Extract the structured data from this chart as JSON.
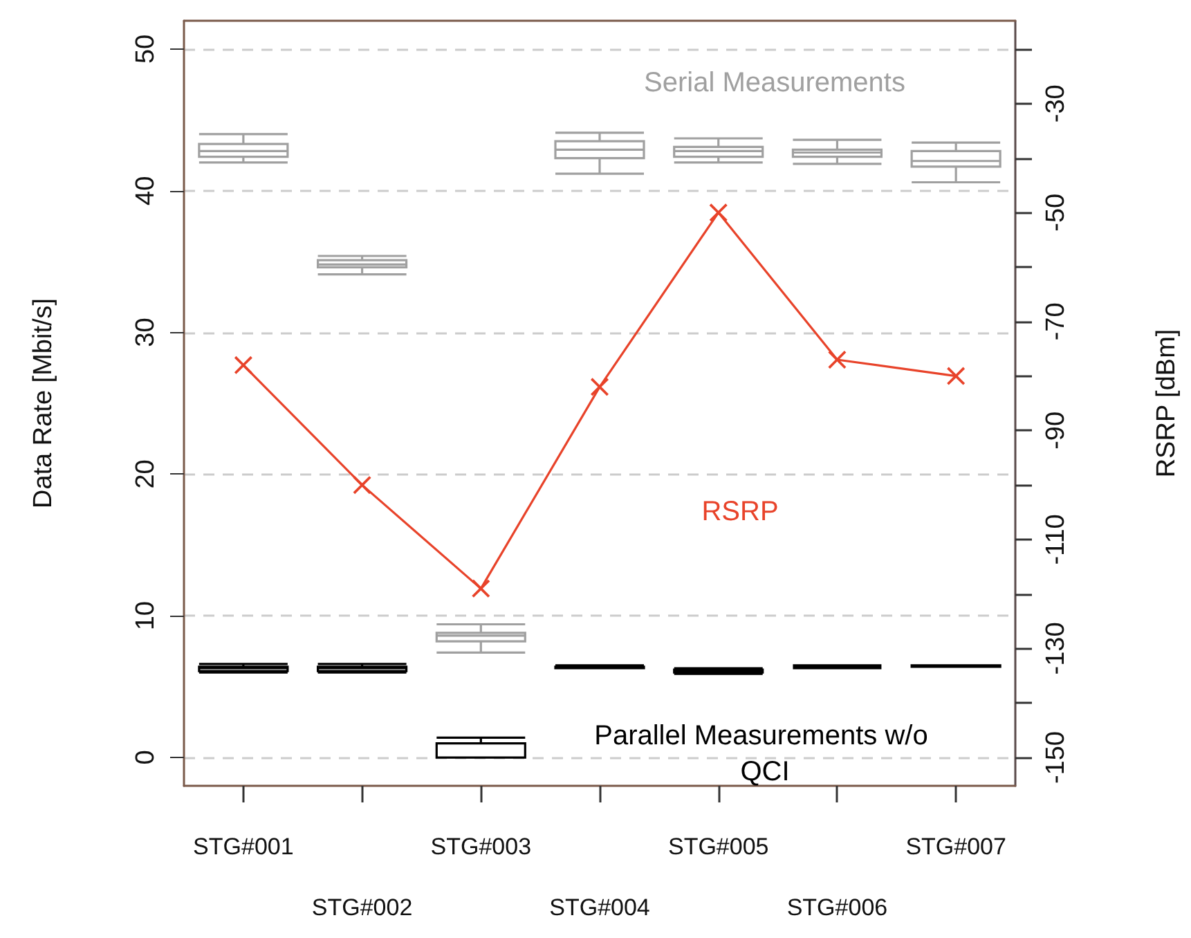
{
  "chart_data": {
    "type": "box",
    "categories": [
      "STG#001",
      "STG#002",
      "STG#003",
      "STG#004",
      "STG#005",
      "STG#006",
      "STG#007"
    ],
    "ylabel": "Data Rate [Mbit/s]",
    "y2label": "RSRP [dBm]",
    "ylim": [
      -2,
      52
    ],
    "yticks": [
      0,
      10,
      20,
      30,
      40,
      50
    ],
    "y2lim": [
      -155.2,
      -14.8
    ],
    "y2ticks": [
      {
        "value": -20,
        "label": null
      },
      -30,
      {
        "value": -40,
        "label": null
      },
      -50,
      {
        "value": -60,
        "label": null
      },
      -70,
      {
        "value": -80,
        "label": null
      },
      -90,
      {
        "value": -100,
        "label": null
      },
      -110,
      {
        "value": -120,
        "label": null
      },
      -130,
      {
        "value": -140,
        "label": null
      },
      -150
    ],
    "grid": "y",
    "legend": false,
    "series": [
      {
        "name": "Serial Measurements",
        "color": "#a0a0a0",
        "boxes": [
          {
            "low": 42.0,
            "q1": 42.4,
            "median": 42.8,
            "q3": 43.3,
            "high": 44.0
          },
          {
            "low": 34.1,
            "q1": 34.6,
            "median": 34.8,
            "q3": 35.1,
            "high": 35.4
          },
          {
            "low": 7.4,
            "q1": 8.2,
            "median": 8.6,
            "q3": 8.8,
            "high": 9.4
          },
          {
            "low": 41.2,
            "q1": 42.3,
            "median": 42.9,
            "q3": 43.5,
            "high": 44.1
          },
          {
            "low": 42.0,
            "q1": 42.4,
            "median": 42.8,
            "q3": 43.1,
            "high": 43.7
          },
          {
            "low": 41.9,
            "q1": 42.4,
            "median": 42.7,
            "q3": 42.9,
            "high": 43.6
          },
          {
            "low": 40.6,
            "q1": 41.7,
            "median": 42.1,
            "q3": 42.8,
            "high": 43.4
          }
        ]
      },
      {
        "name": "Parallel Measurements w/o QCI",
        "color": "#000000",
        "boxes": [
          {
            "low": 6.0,
            "q1": 6.1,
            "median": 6.3,
            "q3": 6.4,
            "high": 6.6
          },
          {
            "low": 6.0,
            "q1": 6.1,
            "median": 6.3,
            "q3": 6.4,
            "high": 6.6
          },
          {
            "low": 0.0,
            "q1": 0.0,
            "median": 0.0,
            "q3": 1.0,
            "high": 1.4
          },
          {
            "low": 6.3,
            "q1": 6.3,
            "median": 6.4,
            "q3": 6.4,
            "high": 6.5
          },
          {
            "low": 5.9,
            "q1": 6.0,
            "median": 6.1,
            "q3": 6.2,
            "high": 6.3
          },
          {
            "low": 6.3,
            "q1": 6.4,
            "median": 6.4,
            "q3": 6.4,
            "high": 6.5
          },
          {
            "low": 6.4,
            "q1": 6.4,
            "median": 6.4,
            "q3": 6.5,
            "high": 6.5
          }
        ]
      },
      {
        "name": "RSRP",
        "type": "line",
        "axis": "y2",
        "color": "#e8432a",
        "marker": "cross",
        "values": [
          -78,
          -100,
          -119,
          -82,
          -50,
          -77,
          -80
        ]
      }
    ]
  }
}
